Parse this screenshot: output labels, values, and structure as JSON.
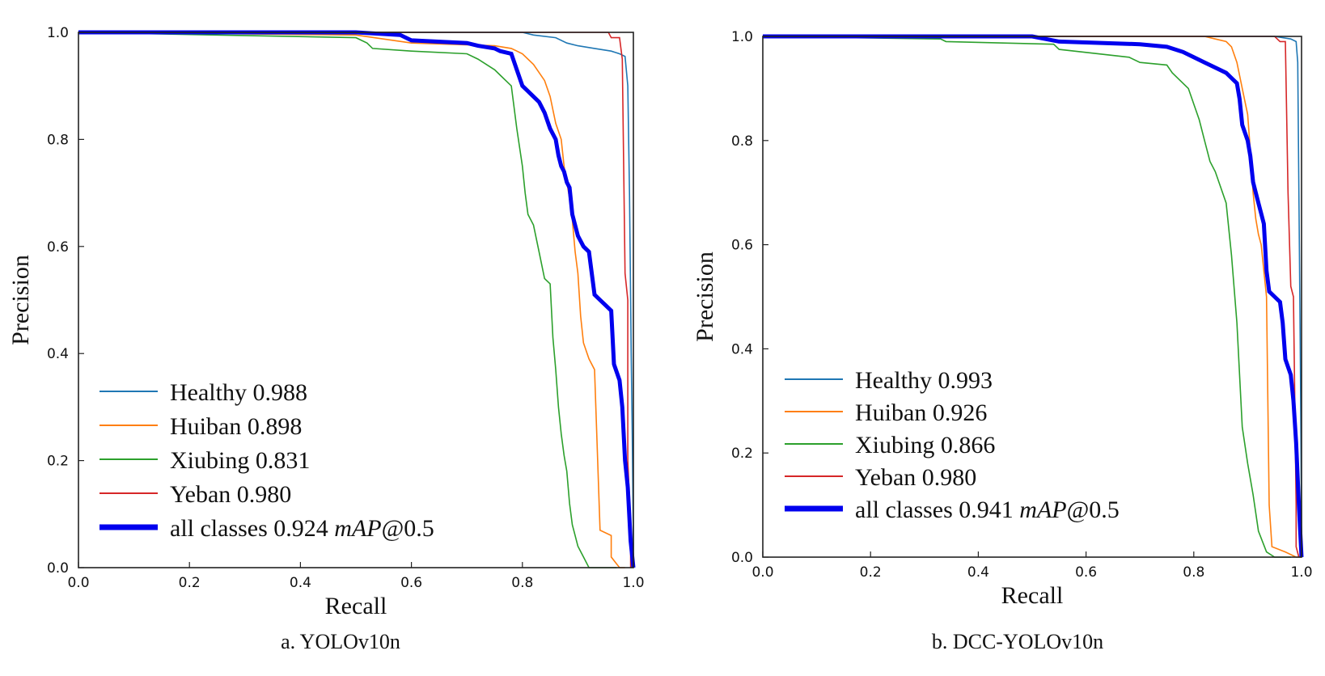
{
  "chart_data": [
    {
      "type": "line",
      "caption": "a. YOLOv10n",
      "xlabel": "Recall",
      "ylabel": "Precision",
      "xlim": [
        0,
        1
      ],
      "ylim": [
        0,
        1
      ],
      "xticks": [
        "0.0",
        "0.2",
        "0.4",
        "0.6",
        "0.8",
        "1.0"
      ],
      "yticks": [
        "0.0",
        "0.2",
        "0.4",
        "0.6",
        "0.8",
        "1.0"
      ],
      "legend_position": "lower-left",
      "series": [
        {
          "name": "Healthy 0.988",
          "color": "#1f77b4",
          "points": [
            [
              0,
              1
            ],
            [
              0.8,
              1
            ],
            [
              0.82,
              0.995
            ],
            [
              0.86,
              0.99
            ],
            [
              0.88,
              0.98
            ],
            [
              0.9,
              0.975
            ],
            [
              0.93,
              0.97
            ],
            [
              0.96,
              0.965
            ],
            [
              0.975,
              0.96
            ],
            [
              0.985,
              0.955
            ],
            [
              0.99,
              0.9
            ],
            [
              0.993,
              0.7
            ],
            [
              0.996,
              0.4
            ],
            [
              0.998,
              0.25
            ],
            [
              1.0,
              0.05
            ],
            [
              1.0,
              0
            ]
          ]
        },
        {
          "name": "Huiban 0.898",
          "color": "#ff7f0e",
          "points": [
            [
              0,
              1
            ],
            [
              0.5,
              0.995
            ],
            [
              0.6,
              0.98
            ],
            [
              0.75,
              0.975
            ],
            [
              0.78,
              0.97
            ],
            [
              0.8,
              0.96
            ],
            [
              0.82,
              0.94
            ],
            [
              0.84,
              0.91
            ],
            [
              0.85,
              0.88
            ],
            [
              0.86,
              0.83
            ],
            [
              0.87,
              0.8
            ],
            [
              0.875,
              0.75
            ],
            [
              0.88,
              0.72
            ],
            [
              0.885,
              0.69
            ],
            [
              0.89,
              0.65
            ],
            [
              0.895,
              0.59
            ],
            [
              0.9,
              0.55
            ],
            [
              0.905,
              0.47
            ],
            [
              0.91,
              0.42
            ],
            [
              0.92,
              0.39
            ],
            [
              0.93,
              0.37
            ],
            [
              0.94,
              0.07
            ],
            [
              0.96,
              0.06
            ],
            [
              0.96,
              0.02
            ],
            [
              0.975,
              0
            ],
            [
              0.985,
              0
            ]
          ]
        },
        {
          "name": "Xiubing 0.831",
          "color": "#2ca02c",
          "points": [
            [
              0,
              1
            ],
            [
              0.5,
              0.99
            ],
            [
              0.52,
              0.98
            ],
            [
              0.53,
              0.97
            ],
            [
              0.6,
              0.965
            ],
            [
              0.7,
              0.96
            ],
            [
              0.72,
              0.95
            ],
            [
              0.75,
              0.93
            ],
            [
              0.76,
              0.92
            ],
            [
              0.78,
              0.9
            ],
            [
              0.79,
              0.82
            ],
            [
              0.8,
              0.75
            ],
            [
              0.805,
              0.7
            ],
            [
              0.81,
              0.66
            ],
            [
              0.82,
              0.64
            ],
            [
              0.83,
              0.59
            ],
            [
              0.84,
              0.54
            ],
            [
              0.85,
              0.53
            ],
            [
              0.855,
              0.43
            ],
            [
              0.86,
              0.37
            ],
            [
              0.865,
              0.3
            ],
            [
              0.87,
              0.25
            ],
            [
              0.875,
              0.21
            ],
            [
              0.88,
              0.18
            ],
            [
              0.885,
              0.12
            ],
            [
              0.89,
              0.08
            ],
            [
              0.895,
              0.06
            ],
            [
              0.9,
              0.04
            ],
            [
              0.91,
              0.02
            ],
            [
              0.92,
              0
            ],
            [
              0.97,
              0
            ]
          ]
        },
        {
          "name": "Yeban 0.980",
          "color": "#d62728",
          "points": [
            [
              0,
              1
            ],
            [
              0.955,
              1
            ],
            [
              0.96,
              0.99
            ],
            [
              0.975,
              0.99
            ],
            [
              0.98,
              0.95
            ],
            [
              0.985,
              0.55
            ],
            [
              0.99,
              0.5
            ],
            [
              0.99,
              0.2
            ],
            [
              0.995,
              0.08
            ],
            [
              0.995,
              0
            ]
          ]
        },
        {
          "name": "all classes 0.924 mAP@0.5",
          "color": "#0000ee",
          "bold": true,
          "points": [
            [
              0,
              1
            ],
            [
              0.5,
              1
            ],
            [
              0.58,
              0.995
            ],
            [
              0.6,
              0.985
            ],
            [
              0.7,
              0.98
            ],
            [
              0.72,
              0.975
            ],
            [
              0.75,
              0.97
            ],
            [
              0.76,
              0.965
            ],
            [
              0.78,
              0.96
            ],
            [
              0.79,
              0.93
            ],
            [
              0.8,
              0.9
            ],
            [
              0.81,
              0.89
            ],
            [
              0.82,
              0.88
            ],
            [
              0.83,
              0.87
            ],
            [
              0.84,
              0.85
            ],
            [
              0.85,
              0.82
            ],
            [
              0.86,
              0.8
            ],
            [
              0.865,
              0.77
            ],
            [
              0.87,
              0.75
            ],
            [
              0.875,
              0.74
            ],
            [
              0.88,
              0.72
            ],
            [
              0.885,
              0.71
            ],
            [
              0.89,
              0.66
            ],
            [
              0.9,
              0.62
            ],
            [
              0.91,
              0.6
            ],
            [
              0.92,
              0.59
            ],
            [
              0.93,
              0.51
            ],
            [
              0.94,
              0.5
            ],
            [
              0.95,
              0.49
            ],
            [
              0.96,
              0.48
            ],
            [
              0.965,
              0.38
            ],
            [
              0.975,
              0.35
            ],
            [
              0.98,
              0.3
            ],
            [
              0.985,
              0.2
            ],
            [
              0.99,
              0.15
            ],
            [
              0.995,
              0.05
            ],
            [
              1.0,
              0
            ]
          ]
        }
      ]
    },
    {
      "type": "line",
      "caption": "b. DCC-YOLOv10n",
      "xlabel": "Recall",
      "ylabel": "Precision",
      "xlim": [
        0,
        1
      ],
      "ylim": [
        0,
        1
      ],
      "xticks": [
        "0.0",
        "0.2",
        "0.4",
        "0.6",
        "0.8",
        "1.0"
      ],
      "yticks": [
        "0.0",
        "0.2",
        "0.4",
        "0.6",
        "0.8",
        "1.0"
      ],
      "legend_position": "lower-left",
      "series": [
        {
          "name": "Healthy 0.993",
          "color": "#1f77b4",
          "points": [
            [
              0,
              1
            ],
            [
              0.95,
              1
            ],
            [
              0.98,
              0.995
            ],
            [
              0.99,
              0.99
            ],
            [
              0.993,
              0.95
            ],
            [
              0.996,
              0.6
            ],
            [
              0.998,
              0.35
            ],
            [
              1.0,
              0.05
            ],
            [
              1.0,
              0
            ]
          ]
        },
        {
          "name": "Huiban 0.926",
          "color": "#ff7f0e",
          "points": [
            [
              0,
              1
            ],
            [
              0.82,
              1
            ],
            [
              0.84,
              0.995
            ],
            [
              0.86,
              0.99
            ],
            [
              0.87,
              0.98
            ],
            [
              0.88,
              0.95
            ],
            [
              0.89,
              0.9
            ],
            [
              0.9,
              0.85
            ],
            [
              0.905,
              0.78
            ],
            [
              0.91,
              0.7
            ],
            [
              0.915,
              0.65
            ],
            [
              0.92,
              0.62
            ],
            [
              0.925,
              0.6
            ],
            [
              0.93,
              0.55
            ],
            [
              0.935,
              0.5
            ],
            [
              0.94,
              0.1
            ],
            [
              0.945,
              0.02
            ],
            [
              0.97,
              0.01
            ],
            [
              0.99,
              0
            ],
            [
              1.0,
              0
            ]
          ]
        },
        {
          "name": "Xiubing 0.866",
          "color": "#2ca02c",
          "points": [
            [
              0,
              1
            ],
            [
              0.33,
              0.995
            ],
            [
              0.34,
              0.99
            ],
            [
              0.54,
              0.985
            ],
            [
              0.55,
              0.975
            ],
            [
              0.68,
              0.96
            ],
            [
              0.7,
              0.95
            ],
            [
              0.75,
              0.945
            ],
            [
              0.76,
              0.93
            ],
            [
              0.79,
              0.9
            ],
            [
              0.8,
              0.87
            ],
            [
              0.81,
              0.84
            ],
            [
              0.82,
              0.8
            ],
            [
              0.83,
              0.76
            ],
            [
              0.84,
              0.74
            ],
            [
              0.85,
              0.71
            ],
            [
              0.86,
              0.68
            ],
            [
              0.87,
              0.58
            ],
            [
              0.88,
              0.45
            ],
            [
              0.89,
              0.25
            ],
            [
              0.9,
              0.18
            ],
            [
              0.91,
              0.12
            ],
            [
              0.92,
              0.05
            ],
            [
              0.935,
              0.01
            ],
            [
              0.95,
              0
            ],
            [
              0.98,
              0
            ]
          ]
        },
        {
          "name": "Yeban 0.980",
          "color": "#d62728",
          "points": [
            [
              0,
              1
            ],
            [
              0.95,
              1
            ],
            [
              0.96,
              0.99
            ],
            [
              0.97,
              0.99
            ],
            [
              0.975,
              0.7
            ],
            [
              0.98,
              0.52
            ],
            [
              0.985,
              0.5
            ],
            [
              0.99,
              0.1
            ],
            [
              0.99,
              0.02
            ],
            [
              0.995,
              0
            ]
          ]
        },
        {
          "name": "all classes 0.941 mAP@0.5",
          "color": "#0000ee",
          "bold": true,
          "points": [
            [
              0,
              1
            ],
            [
              0.5,
              1
            ],
            [
              0.55,
              0.99
            ],
            [
              0.7,
              0.985
            ],
            [
              0.75,
              0.98
            ],
            [
              0.78,
              0.97
            ],
            [
              0.8,
              0.96
            ],
            [
              0.82,
              0.95
            ],
            [
              0.84,
              0.94
            ],
            [
              0.86,
              0.93
            ],
            [
              0.87,
              0.92
            ],
            [
              0.88,
              0.91
            ],
            [
              0.885,
              0.88
            ],
            [
              0.89,
              0.83
            ],
            [
              0.9,
              0.8
            ],
            [
              0.905,
              0.77
            ],
            [
              0.91,
              0.72
            ],
            [
              0.915,
              0.7
            ],
            [
              0.92,
              0.68
            ],
            [
              0.925,
              0.66
            ],
            [
              0.93,
              0.64
            ],
            [
              0.935,
              0.55
            ],
            [
              0.94,
              0.51
            ],
            [
              0.95,
              0.5
            ],
            [
              0.96,
              0.49
            ],
            [
              0.965,
              0.45
            ],
            [
              0.97,
              0.38
            ],
            [
              0.98,
              0.35
            ],
            [
              0.985,
              0.3
            ],
            [
              0.99,
              0.22
            ],
            [
              0.995,
              0.1
            ],
            [
              1.0,
              0
            ]
          ]
        }
      ]
    }
  ]
}
